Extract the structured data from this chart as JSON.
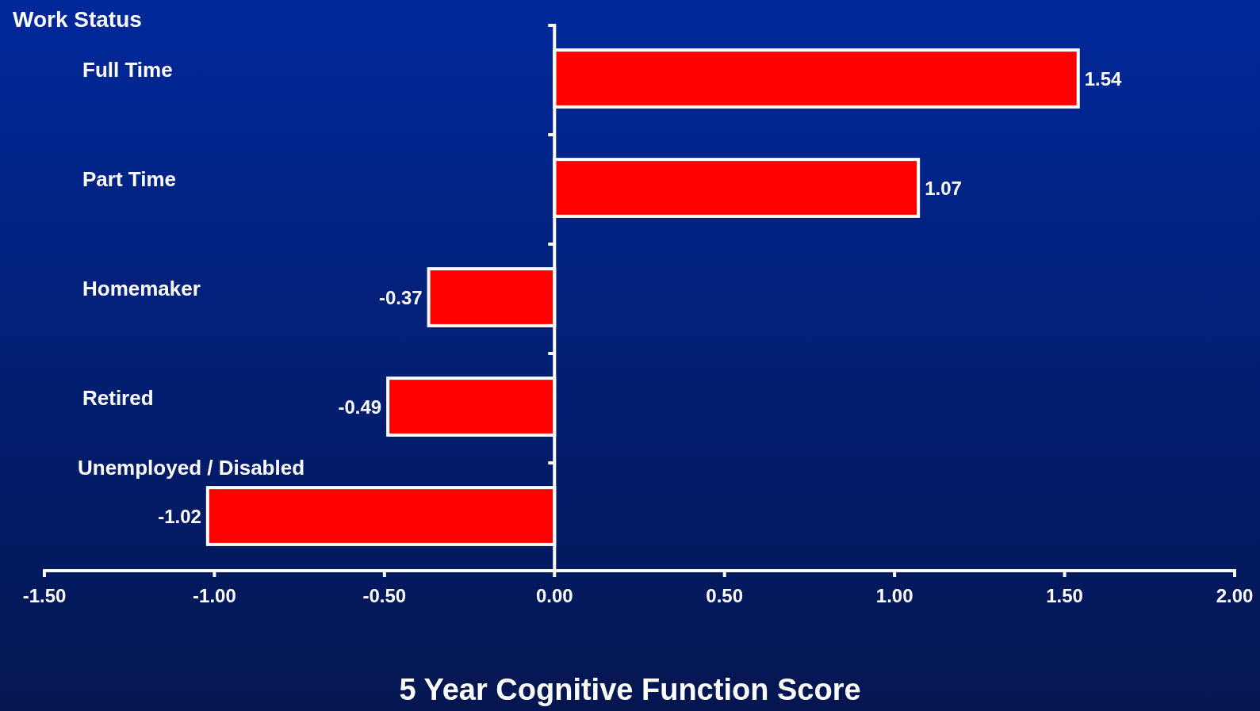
{
  "chart_data": {
    "type": "bar",
    "orientation": "horizontal",
    "ylabel": "Work Status",
    "xlabel": "5 Year Cognitive Function Score",
    "categories": [
      "Full Time",
      "Part Time",
      "Homemaker",
      "Retired",
      "Unemployed / Disabled"
    ],
    "values": [
      1.54,
      1.07,
      -0.37,
      -0.49,
      -1.02
    ],
    "color": "#ff0000",
    "data_labels": true,
    "xlim": [
      -1.5,
      2.0
    ],
    "xticks": [
      {
        "value": -1.5,
        "label": "-1.50"
      },
      {
        "value": -1.0,
        "label": "-1.00"
      },
      {
        "value": -0.5,
        "label": "-0.50"
      },
      {
        "value": 0,
        "label": "0.00"
      },
      {
        "value": 0.5,
        "label": "0.50"
      },
      {
        "value": 1.0,
        "label": "1.00"
      },
      {
        "value": 1.5,
        "label": "1.50"
      },
      {
        "value": 2.0,
        "label": "2.00"
      }
    ]
  }
}
